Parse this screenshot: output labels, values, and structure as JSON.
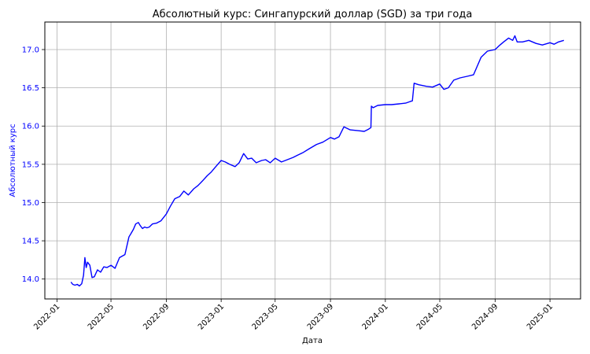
{
  "chart_data": {
    "type": "line",
    "title": "Абсолютный курс: Сингапурский доллар (SGD) за три года",
    "xlabel": "Дата",
    "ylabel": "Абсолютный курс",
    "grid": true,
    "line_color": "#0000ff",
    "ylim": [
      13.74,
      17.36
    ],
    "xlim": [
      "2021-12-05",
      "2025-03-10"
    ],
    "x_ticks": [
      "2022-01",
      "2022-05",
      "2022-09",
      "2023-01",
      "2023-05",
      "2023-09",
      "2024-01",
      "2024-05",
      "2024-09",
      "2025-01"
    ],
    "y_ticks": [
      "14.0",
      "14.5",
      "15.0",
      "15.5",
      "16.0",
      "16.5",
      "17.0"
    ],
    "series": [
      {
        "x": [
          "2022-02-01",
          "2022-02-05",
          "2022-02-10",
          "2022-02-15",
          "2022-02-20",
          "2022-02-25",
          "2022-03-01",
          "2022-03-04",
          "2022-03-07",
          "2022-03-10",
          "2022-03-15",
          "2022-03-20",
          "2022-03-25",
          "2022-04-01",
          "2022-04-08",
          "2022-04-15",
          "2022-04-22",
          "2022-05-01",
          "2022-05-10",
          "2022-05-20",
          "2022-06-01",
          "2022-06-10",
          "2022-06-15",
          "2022-06-20",
          "2022-06-25",
          "2022-07-01",
          "2022-07-05",
          "2022-07-10",
          "2022-07-15",
          "2022-07-20",
          "2022-07-25",
          "2022-08-01",
          "2022-08-10",
          "2022-08-20",
          "2022-09-01",
          "2022-09-10",
          "2022-09-20",
          "2022-10-01",
          "2022-10-10",
          "2022-10-20",
          "2022-11-01",
          "2022-11-10",
          "2022-11-20",
          "2022-12-01",
          "2022-12-10",
          "2022-12-20",
          "2023-01-01",
          "2023-01-10",
          "2023-01-20",
          "2023-02-01",
          "2023-02-10",
          "2023-02-20",
          "2023-03-01",
          "2023-03-10",
          "2023-03-20",
          "2023-04-01",
          "2023-04-10",
          "2023-04-20",
          "2023-05-01",
          "2023-05-15",
          "2023-06-01",
          "2023-06-10",
          "2023-06-20",
          "2023-07-01",
          "2023-07-15",
          "2023-08-01",
          "2023-08-15",
          "2023-09-01",
          "2023-09-10",
          "2023-09-20",
          "2023-10-01",
          "2023-10-15",
          "2023-11-01",
          "2023-11-15",
          "2023-11-25",
          "2023-11-30",
          "2023-12-01",
          "2023-12-05",
          "2023-12-15",
          "2024-01-01",
          "2024-01-15",
          "2024-02-01",
          "2024-02-15",
          "2024-02-25",
          "2024-03-01",
          "2024-03-05",
          "2024-03-15",
          "2024-04-01",
          "2024-04-15",
          "2024-05-01",
          "2024-05-10",
          "2024-05-20",
          "2024-06-01",
          "2024-06-15",
          "2024-07-01",
          "2024-07-15",
          "2024-08-01",
          "2024-08-15",
          "2024-09-01",
          "2024-09-10",
          "2024-09-20",
          "2024-10-01",
          "2024-10-10",
          "2024-10-15",
          "2024-10-20",
          "2024-11-01",
          "2024-11-15",
          "2024-12-01",
          "2024-12-15",
          "2025-01-01",
          "2025-01-10",
          "2025-01-20",
          "2025-02-01"
        ],
        "y": [
          13.96,
          13.93,
          13.92,
          13.93,
          13.91,
          13.94,
          14.05,
          14.28,
          14.15,
          14.22,
          14.18,
          14.02,
          14.03,
          14.12,
          14.09,
          14.16,
          14.15,
          14.18,
          14.14,
          14.28,
          14.32,
          14.55,
          14.6,
          14.65,
          14.72,
          14.74,
          14.7,
          14.66,
          14.68,
          14.67,
          14.68,
          14.72,
          14.73,
          14.76,
          14.85,
          14.95,
          15.05,
          15.08,
          15.15,
          15.1,
          15.18,
          15.22,
          15.28,
          15.35,
          15.4,
          15.47,
          15.55,
          15.53,
          15.5,
          15.47,
          15.52,
          15.64,
          15.57,
          15.58,
          15.52,
          15.55,
          15.56,
          15.52,
          15.58,
          15.53,
          15.57,
          15.59,
          15.62,
          15.65,
          15.7,
          15.76,
          15.79,
          15.85,
          15.83,
          15.86,
          15.99,
          15.95,
          15.94,
          15.93,
          15.96,
          15.98,
          16.26,
          16.24,
          16.27,
          16.28,
          16.28,
          16.29,
          16.3,
          16.32,
          16.33,
          16.56,
          16.54,
          16.52,
          16.51,
          16.55,
          16.48,
          16.5,
          16.6,
          16.63,
          16.65,
          16.67,
          16.9,
          16.98,
          17.0,
          17.05,
          17.1,
          17.15,
          17.12,
          17.18,
          17.1,
          17.1,
          17.12,
          17.08,
          17.06,
          17.09,
          17.07,
          17.1,
          17.12
        ]
      }
    ]
  }
}
